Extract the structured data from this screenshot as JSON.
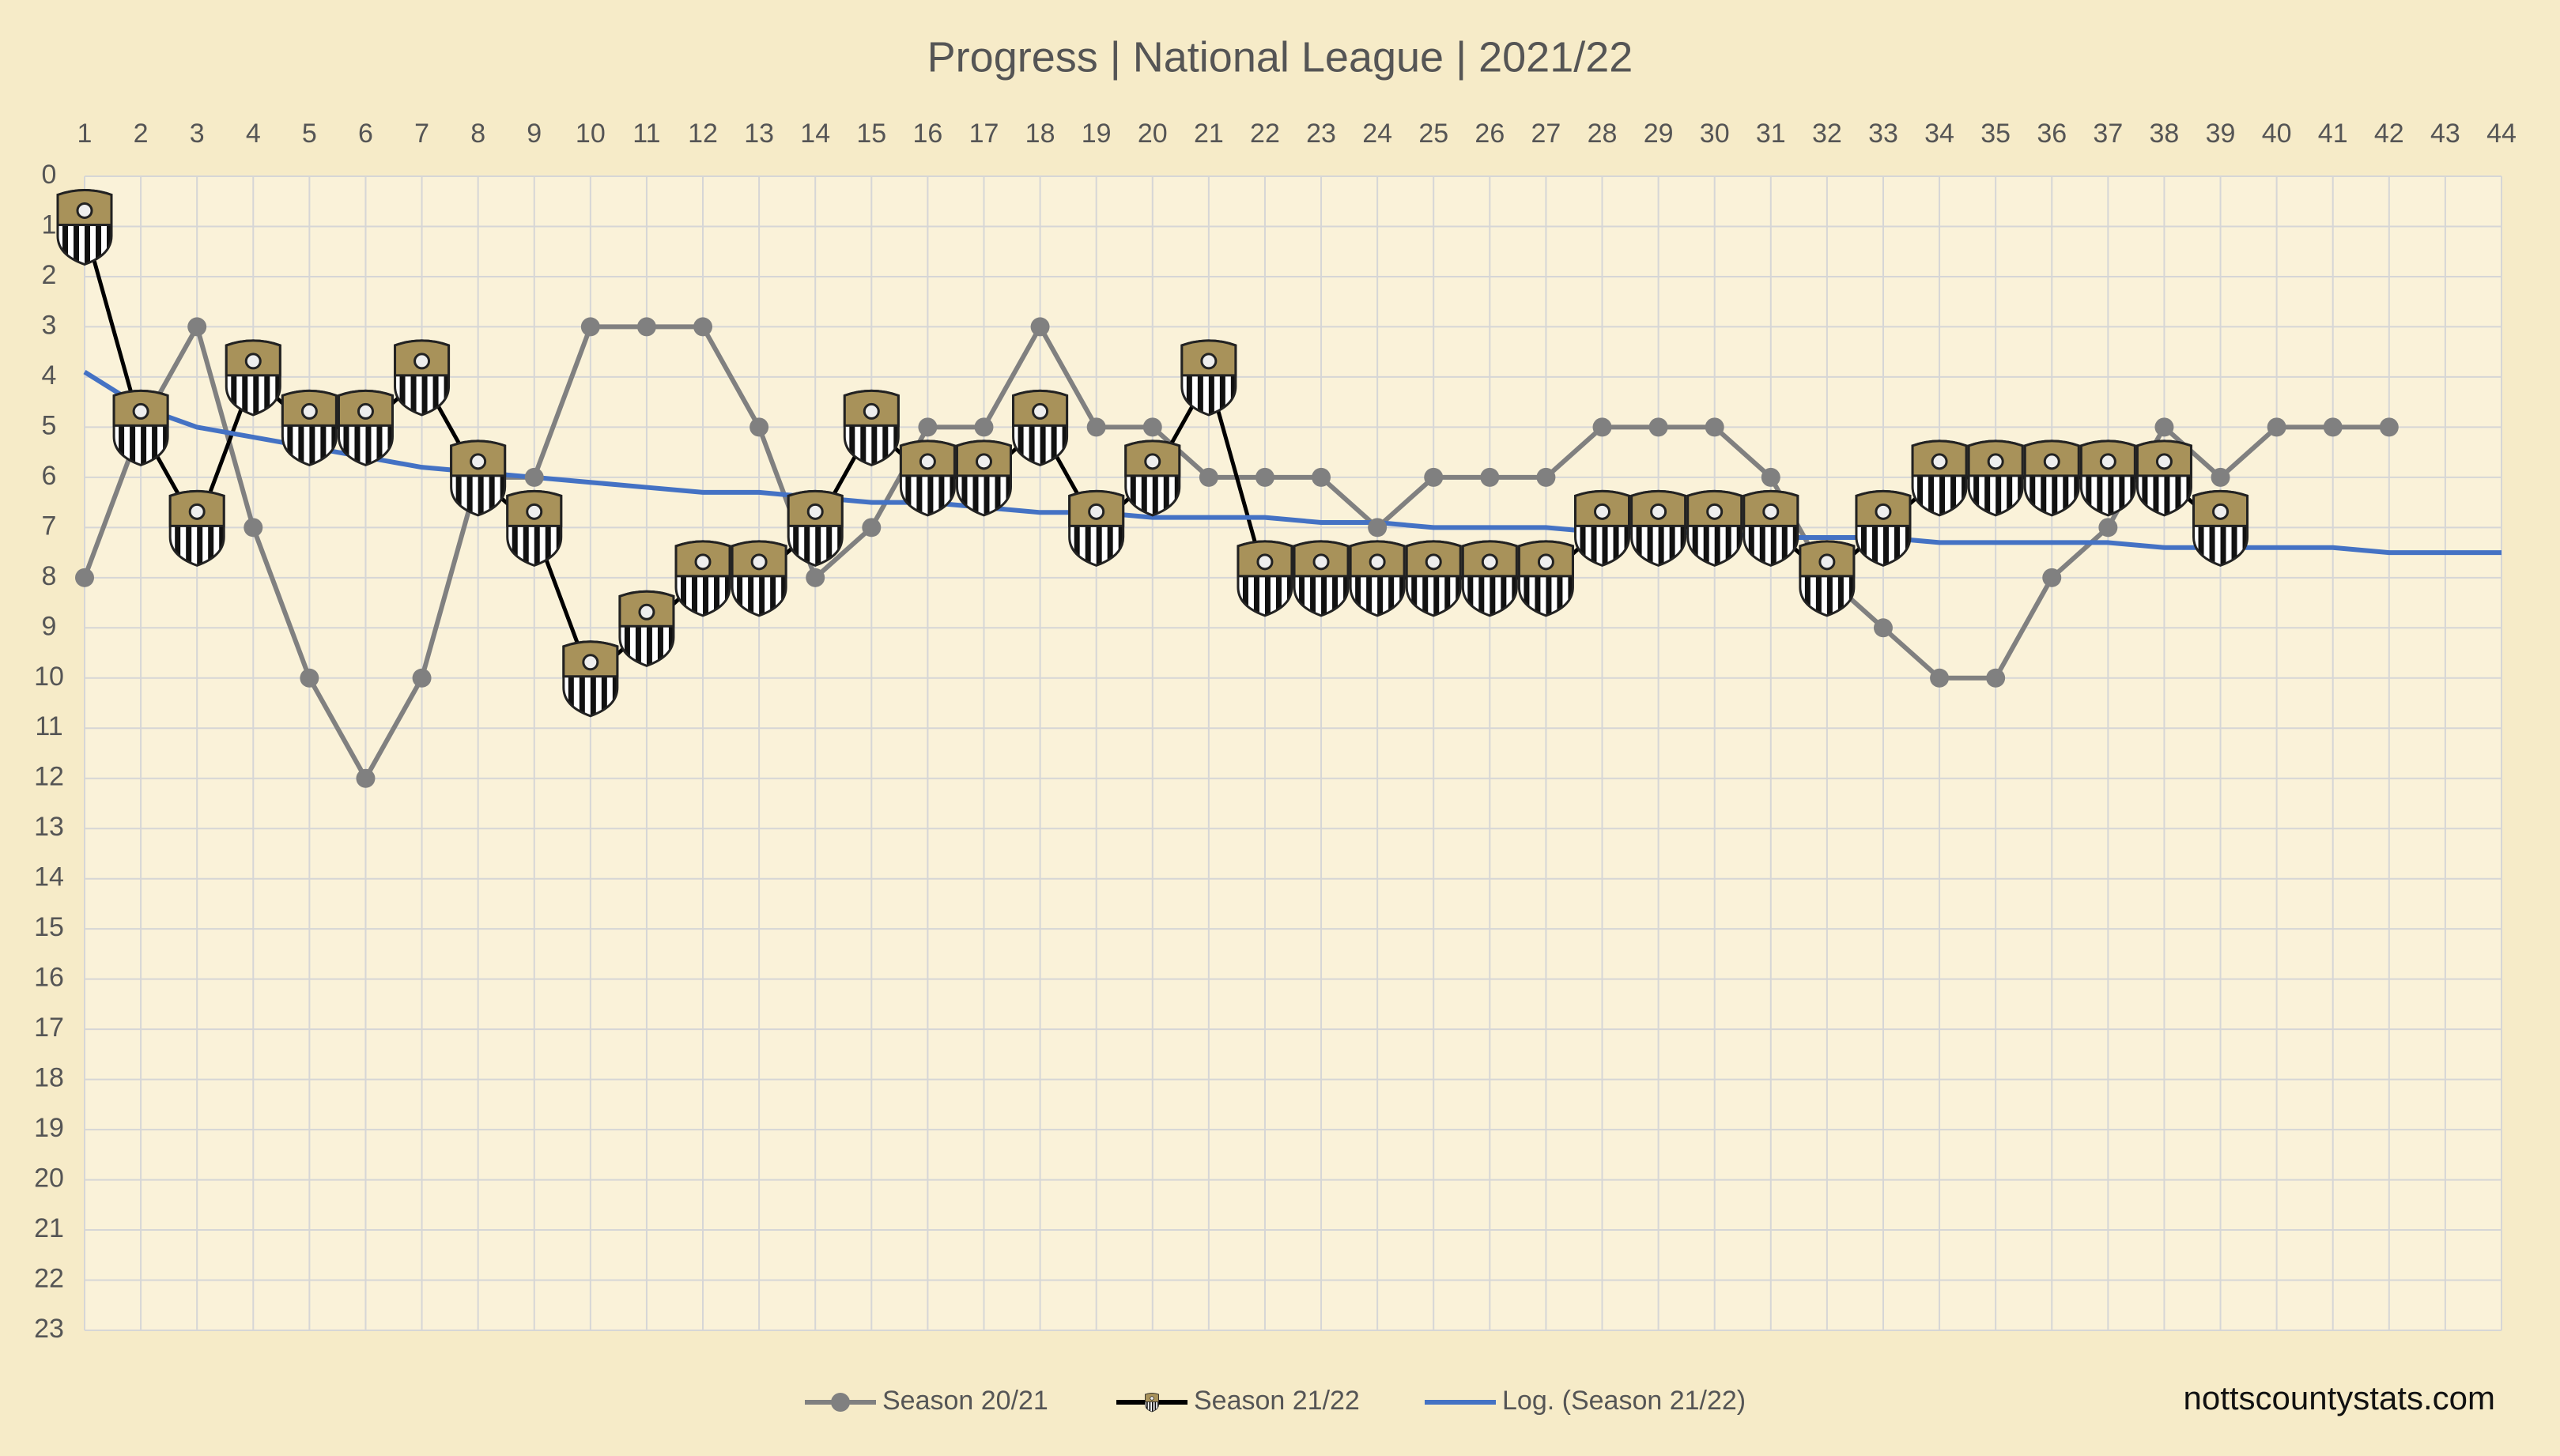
{
  "chart_data": {
    "type": "line",
    "title": "Progress | National League | 2021/22",
    "source": "nottscountystats.com",
    "x": [
      1,
      2,
      3,
      4,
      5,
      6,
      7,
      8,
      9,
      10,
      11,
      12,
      13,
      14,
      15,
      16,
      17,
      18,
      19,
      20,
      21,
      22,
      23,
      24,
      25,
      26,
      27,
      28,
      29,
      30,
      31,
      32,
      33,
      34,
      35,
      36,
      37,
      38,
      39,
      40,
      41,
      42,
      43,
      44
    ],
    "xlim": [
      1,
      44
    ],
    "xticks": [
      1,
      2,
      3,
      4,
      5,
      6,
      7,
      8,
      9,
      10,
      11,
      12,
      13,
      14,
      15,
      16,
      17,
      18,
      19,
      20,
      21,
      22,
      23,
      24,
      25,
      26,
      27,
      28,
      29,
      30,
      31,
      32,
      33,
      34,
      35,
      36,
      37,
      38,
      39,
      40,
      41,
      42,
      43,
      44
    ],
    "x_axis_position": "top",
    "ylim": [
      0,
      23
    ],
    "y_reversed": true,
    "yticks": [
      0,
      1,
      2,
      3,
      4,
      5,
      6,
      7,
      8,
      9,
      10,
      11,
      12,
      13,
      14,
      15,
      16,
      17,
      18,
      19,
      20,
      21,
      22,
      23
    ],
    "grid": true,
    "legend_position": "bottom",
    "series": [
      {
        "name": "Season 20/21",
        "color": "#808080",
        "marker": "circle",
        "values": [
          8,
          5,
          3,
          7,
          10,
          12,
          10,
          6,
          6,
          3,
          3,
          3,
          5,
          8,
          7,
          5,
          5,
          3,
          5,
          5,
          6,
          6,
          6,
          7,
          6,
          6,
          6,
          5,
          5,
          5,
          6,
          8,
          9,
          10,
          10,
          8,
          7,
          5,
          6,
          5,
          5,
          5,
          null,
          null
        ]
      },
      {
        "name": "Season 21/22",
        "color": "#000000",
        "marker": "badge",
        "values": [
          1,
          5,
          7,
          4,
          5,
          5,
          4,
          6,
          7,
          10,
          9,
          8,
          8,
          7,
          5,
          6,
          6,
          5,
          7,
          6,
          4,
          8,
          8,
          8,
          8,
          8,
          8,
          7,
          7,
          7,
          7,
          8,
          7,
          6,
          6,
          6,
          6,
          6,
          7,
          null,
          null,
          null,
          null,
          null
        ]
      },
      {
        "name": "Log. (Season 21/22)",
        "color": "#4472c4",
        "marker": "none",
        "values": [
          3.9,
          4.6,
          5.0,
          5.2,
          5.4,
          5.6,
          5.8,
          5.9,
          6.0,
          6.1,
          6.2,
          6.3,
          6.3,
          6.4,
          6.5,
          6.5,
          6.6,
          6.7,
          6.7,
          6.8,
          6.8,
          6.8,
          6.9,
          6.9,
          7.0,
          7.0,
          7.0,
          7.1,
          7.1,
          7.1,
          7.2,
          7.2,
          7.2,
          7.3,
          7.3,
          7.3,
          7.3,
          7.4,
          7.4,
          7.4,
          7.4,
          7.5,
          7.5,
          7.5
        ]
      }
    ]
  }
}
